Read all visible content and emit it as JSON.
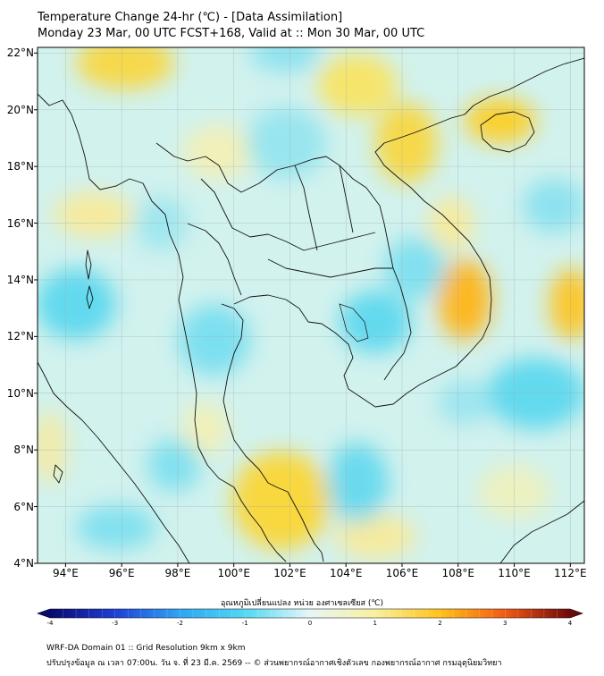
{
  "header": {
    "title_line1": "Temperature Change 24-hr (℃) - [Data Assimilation]",
    "title_line2": "Monday 23 Mar, 00 UTC FCST+168, Valid at :: Mon 30 Mar, 00 UTC"
  },
  "map": {
    "lat_labels": [
      "22°N",
      "20°N",
      "18°N",
      "16°N",
      "14°N",
      "12°N",
      "10°N",
      "8°N",
      "6°N",
      "4°N"
    ],
    "lat_values": [
      22,
      20,
      18,
      16,
      14,
      12,
      10,
      8,
      6,
      4
    ],
    "lon_labels": [
      "94°E",
      "96°E",
      "98°E",
      "100°E",
      "102°E",
      "104°E",
      "106°E",
      "108°E",
      "110°E",
      "112°E"
    ],
    "lon_values": [
      94,
      96,
      98,
      100,
      102,
      104,
      106,
      108,
      110,
      112
    ],
    "lon_range": [
      93,
      112.5
    ],
    "lat_range": [
      4,
      22.2
    ],
    "grid": true,
    "background_color": "#d2f2ee",
    "warm_color": "#ffd21e",
    "cool_color": "#3fd0ee"
  },
  "colorbar": {
    "title": "อุณหภูมิเปลี่ยนแปลง หน่วย องศาเซลเซียส (℃)",
    "ticks": [
      "-4",
      "-3",
      "-2",
      "-1",
      "0",
      "1",
      "2",
      "3",
      "4"
    ],
    "tick_values": [
      -4,
      -3,
      -2,
      -1,
      0,
      1,
      2,
      3,
      4
    ],
    "range": [
      -4,
      4
    ],
    "colors": [
      "#0a0a6e",
      "#1e3fd6",
      "#2fa5f2",
      "#52d8f4",
      "#e6f6f6",
      "#f8f0a0",
      "#ffc21a",
      "#f25a14",
      "#6e0a0a"
    ]
  },
  "footer": {
    "line1": "WRF-DA Domain 01 :: Grid Resolution 9km x 9km",
    "line2": "ปรับปรุงข้อมูล ณ เวลา 07:00น. วัน จ. ที่ 23 มี.ค. 2569 -- © ส่วนพยากรณ์อากาศเชิงตัวเลข กองพยากรณ์อากาศ กรมอุตุนิยมวิทยา"
  }
}
